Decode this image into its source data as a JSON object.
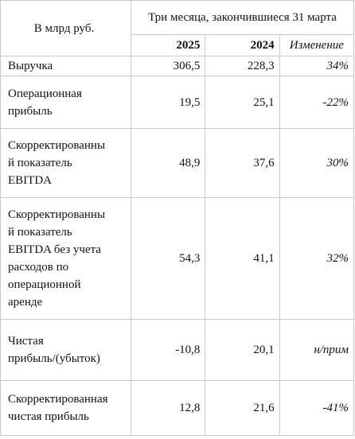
{
  "header": {
    "unit_label": "В млрд руб.",
    "period_label": "Три месяца, закончившиеся 31 марта",
    "col_2025": "2025",
    "col_2024": "2024",
    "col_change": "Изменение"
  },
  "rows": [
    {
      "label_lines": [
        "Выручка"
      ],
      "v2025": "306,5",
      "v2024": "228,3",
      "change": "34%"
    },
    {
      "label_lines": [
        "Операционная",
        "прибыль"
      ],
      "v2025": "19,5",
      "v2024": "25,1",
      "change": "-22%"
    },
    {
      "label_lines": [
        "Скорректированны",
        "й показатель",
        "EBITDA"
      ],
      "v2025": "48,9",
      "v2024": "37,6",
      "change": "30%"
    },
    {
      "label_lines": [
        "Скорректированны",
        "й показатель",
        "EBITDA без учета",
        "расходов по",
        "операционной",
        "аренде"
      ],
      "v2025": "54,3",
      "v2024": "41,1",
      "change": "32%"
    },
    {
      "label_lines": [
        "Чистая",
        "прибыль/(убыток)"
      ],
      "v2025": "-10,8",
      "v2024": "20,1",
      "change": "н/прим"
    },
    {
      "label_lines": [
        "Скорректированная",
        "чистая прибыль"
      ],
      "v2025": "12,8",
      "v2024": "21,6",
      "change": "-41%"
    }
  ]
}
